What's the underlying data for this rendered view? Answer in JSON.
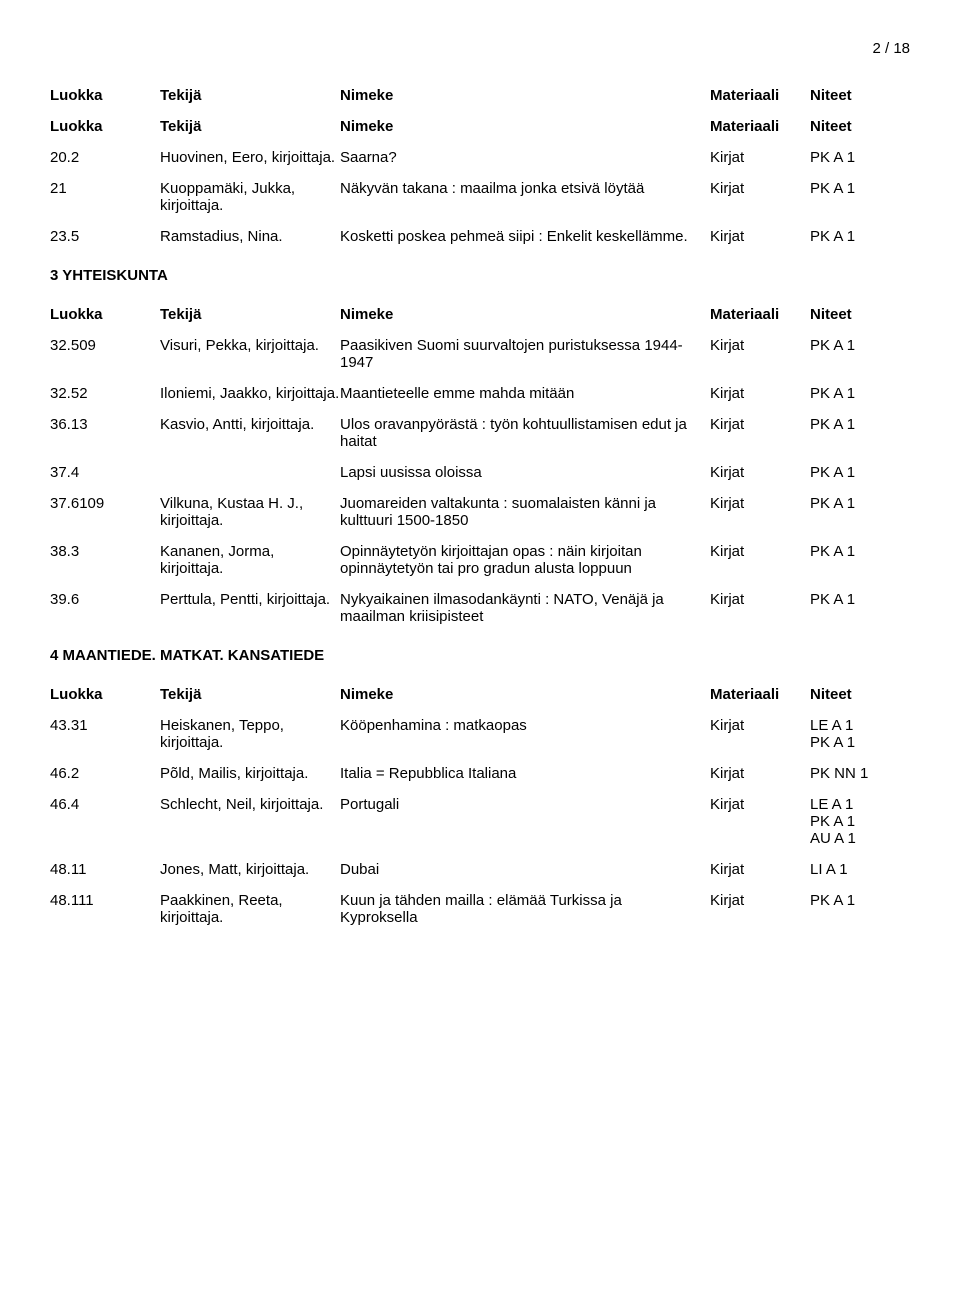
{
  "page_number": "2 / 18",
  "headers": {
    "luokka": "Luokka",
    "tekija": "Tekijä",
    "nimeke": "Nimeke",
    "materiaali": "Materiaali",
    "niteet": "Niteet"
  },
  "sections": [
    {
      "title": null,
      "show_header_twice": true,
      "rows": [
        {
          "luokka": "20.2",
          "tekija": "Huovinen, Eero, kirjoittaja.",
          "nimeke": "Saarna?",
          "materiaali": "Kirjat",
          "niteet": [
            "PK A 1"
          ]
        },
        {
          "luokka": "21",
          "tekija": "Kuoppamäki, Jukka, kirjoittaja.",
          "nimeke": "Näkyvän takana : maailma jonka etsivä löytää",
          "materiaali": "Kirjat",
          "niteet": [
            "PK A 1"
          ]
        },
        {
          "luokka": "23.5",
          "tekija": "Ramstadius, Nina.",
          "nimeke": "Kosketti poskea pehmeä siipi : Enkelit keskellämme.",
          "materiaali": "Kirjat",
          "niteet": [
            "PK A 1"
          ]
        }
      ]
    },
    {
      "title": "3 YHTEISKUNTA",
      "show_header_twice": false,
      "rows": [
        {
          "luokka": "32.509",
          "tekija": "Visuri, Pekka, kirjoittaja.",
          "nimeke": "Paasikiven Suomi suurvaltojen puristuksessa 1944-1947",
          "materiaali": "Kirjat",
          "niteet": [
            "PK A 1"
          ]
        },
        {
          "luokka": "32.52",
          "tekija": "Iloniemi, Jaakko, kirjoittaja.",
          "nimeke": "Maantieteelle emme mahda mitään",
          "materiaali": "Kirjat",
          "niteet": [
            "PK A 1"
          ]
        },
        {
          "luokka": "36.13",
          "tekija": "Kasvio, Antti, kirjoittaja.",
          "nimeke": "Ulos oravanpyörästä : työn kohtuullistamisen edut ja haitat",
          "materiaali": "Kirjat",
          "niteet": [
            "PK A 1"
          ]
        },
        {
          "luokka": "37.4",
          "tekija": "",
          "nimeke": "Lapsi uusissa oloissa",
          "materiaali": "Kirjat",
          "niteet": [
            "PK A 1"
          ]
        },
        {
          "luokka": "37.6109",
          "tekija": "Vilkuna, Kustaa H. J., kirjoittaja.",
          "nimeke": "Juomareiden valtakunta : suomalaisten känni ja kulttuuri 1500-1850",
          "materiaali": "Kirjat",
          "niteet": [
            "PK A 1"
          ]
        },
        {
          "luokka": "38.3",
          "tekija": "Kananen, Jorma, kirjoittaja.",
          "nimeke": "Opinnäytetyön kirjoittajan opas : näin kirjoitan opinnäytetyön tai pro gradun alusta loppuun",
          "materiaali": "Kirjat",
          "niteet": [
            "PK A 1"
          ]
        },
        {
          "luokka": "39.6",
          "tekija": "Perttula, Pentti, kirjoittaja.",
          "nimeke": "Nykyaikainen ilmasodankäynti : NATO, Venäjä ja maailman kriisipisteet",
          "materiaali": "Kirjat",
          "niteet": [
            "PK A 1"
          ]
        }
      ]
    },
    {
      "title": "4 MAANTIEDE. MATKAT. KANSATIEDE",
      "show_header_twice": false,
      "rows": [
        {
          "luokka": "43.31",
          "tekija": "Heiskanen, Teppo, kirjoittaja.",
          "nimeke": "Kööpenhamina : matkaopas",
          "materiaali": "Kirjat",
          "niteet": [
            "LE A 1",
            "PK A 1"
          ]
        },
        {
          "luokka": "46.2",
          "tekija": "Põld, Mailis, kirjoittaja.",
          "nimeke": "Italia = Repubblica Italiana",
          "materiaali": "Kirjat",
          "niteet": [
            "PK NN 1"
          ]
        },
        {
          "luokka": "46.4",
          "tekija": "Schlecht, Neil, kirjoittaja.",
          "nimeke": "Portugali",
          "materiaali": "Kirjat",
          "niteet": [
            "LE A 1",
            "PK A 1",
            "AU A 1"
          ]
        },
        {
          "luokka": "48.11",
          "tekija": "Jones, Matt, kirjoittaja.",
          "nimeke": "Dubai",
          "materiaali": "Kirjat",
          "niteet": [
            "LI A 1"
          ]
        },
        {
          "luokka": "48.111",
          "tekija": "Paakkinen, Reeta, kirjoittaja.",
          "nimeke": "Kuun ja tähden mailla : elämää Turkissa ja Kyproksella",
          "materiaali": "Kirjat",
          "niteet": [
            "PK A 1"
          ]
        }
      ]
    }
  ]
}
